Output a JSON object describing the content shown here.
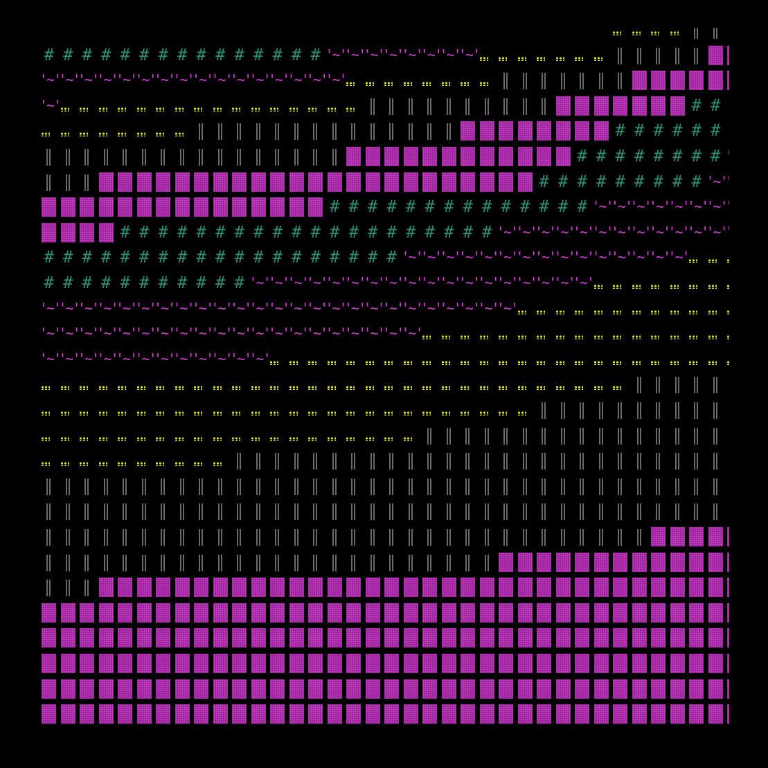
{
  "art": {
    "title": "",
    "glyphs": {
      "B": {
        "name": "shaded-block",
        "text": "▓",
        "color": "#9b1f9b"
      },
      "I": {
        "name": "double-bar",
        "text": "‖",
        "color": "#6a6a6a"
      },
      "H": {
        "name": "hash",
        "text": "#",
        "color": "#2f8a74"
      },
      "T": {
        "name": "tilde-quote",
        "text": "'~'",
        "color": "#d43fd4"
      },
      "D": {
        "name": "dots",
        "text": "..",
        "color": "#e2e22a"
      }
    },
    "rows": [
      "..............................ddddIIIIIB",
      "HHHHHHHHHHHHHHHTTTTTTTTDDDDDDDIIIIIBBBBB",
      "TTTTTTTTTTTTTTTTDDDDDDDDIIIIIIIBBBBBBBBB",
      "TDDDDDDDDDDDDDDDDIIIIIIIIIIBBBBBBBHHHHHH",
      "DDDDDDDDIIIIIIIIIIIIIIBBBBBBBBHHHHHHHHHH",
      "IIIIIIIIIIIIIIIIBBBBBBBBBBBBHHHHHHHHTTTT",
      "IIIBBBBBBBBBBBBBBBBBBBBBBBHHHHHHHHHTTTTT",
      "BBBBBBBBBBBBBBBHHHHHHHHHHHHHHTTTTTTTTTTT",
      "BBBBHHHHHHHHHHHHHHHHHHHHTTTTTTTTTTTTTTTT",
      "HHHHHHHHHHHHHHHHHHHTTTTTTTTTTTTTTTDDDDDD",
      "HHHHHHHHHHHTTTTTTTTTTTTTTTTTTDDDDDDDDDDD",
      "TTTTTTTTTTTTTTTTTTTTTTTTTDDDDDDDDDDDDDDD",
      "TTTTTTTTTTTTTTTTTTTTDDDDDDDDDDDDDDDDDDDD",
      "TTTTTTTTTTTTDDDDDDDDDDDDDDDDDDDDDDDDDDII",
      "DDDDDDDDDDDDDDDDDDDDDDDDDDDDDDDIIIIIIIII",
      "DDDDDDDDDDDDDDDDDDDDDDDDDDIIIIIIIIIIIIII",
      "DDDDDDDDDDDDDDDDDDDDIIIIIIIIIIIIIIIIIIII",
      "DDDDDDDDDDIIIIIIIIIIIIIIIIIIIIIIIIIIIIII",
      "IIIIIIIIIIIIIIIIIIIIIIIIIIIIIIIIIIIIIIII",
      "IIIIIIIIIIIIIIIIIIIIIIIIIIIIIIIIIIIIIIIB",
      "IIIIIIIIIIIIIIIIIIIIIIIIIIIIIIIIBBBBBBBB",
      "IIIIIIIIIIIIIIIIIIIIIIIIBBBBBBBBBBBBBBBB",
      "IIIBBBBBBBBBBBBBBBBBBBBBBBBBBBBBBBBBBBBB",
      "BBBBBBBBBBBBBBBBBBBBBBBBBBBBBBBBBBBBBBBB",
      "BBBBBBBBBBBBBBBBBBBBBBBBBBBBBBBBBBBBBBBB",
      "BBBBBBBBBBBBBBBBBBBBBBBBBBBBBBBBBBBBBBBB",
      "BBBBBBBBBBBBBBBBBBBBBBBBBBBBBBBBBBBBBBBB",
      "BBBBBBBBBBBBBBBBBBBBBBBBBBBBBBBBBBBBBBBB"
    ]
  }
}
